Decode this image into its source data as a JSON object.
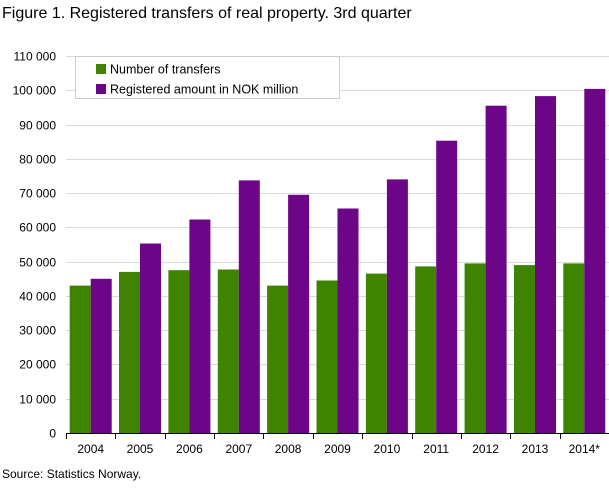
{
  "chart_data": {
    "type": "bar",
    "title": "Figure 1. Registered transfers of real property. 3rd quarter",
    "xlabel": "",
    "ylabel": "",
    "ylim": [
      0,
      110000
    ],
    "ytick_step": 10000,
    "yticks": [
      "0",
      "10 000",
      "20 000",
      "30 000",
      "40 000",
      "50 000",
      "60 000",
      "70 000",
      "80 000",
      "90 000",
      "100 000",
      "110 000"
    ],
    "grid": true,
    "legend_position": "top-left",
    "categories": [
      "2004",
      "2005",
      "2006",
      "2007",
      "2008",
      "2009",
      "2010",
      "2011",
      "2012",
      "2013",
      "2014*"
    ],
    "series": [
      {
        "name": "Number of transfers",
        "color": "#3f8400",
        "values": [
          43000,
          47000,
          47500,
          47700,
          43000,
          44500,
          46500,
          48600,
          49500,
          49000,
          49500
        ]
      },
      {
        "name": "Registered amount in NOK million",
        "color": "#6c0587",
        "values": [
          45000,
          55300,
          62300,
          73700,
          69500,
          65500,
          74000,
          85300,
          95500,
          98300,
          100400
        ]
      }
    ],
    "source": "Source: Statistics Norway."
  }
}
